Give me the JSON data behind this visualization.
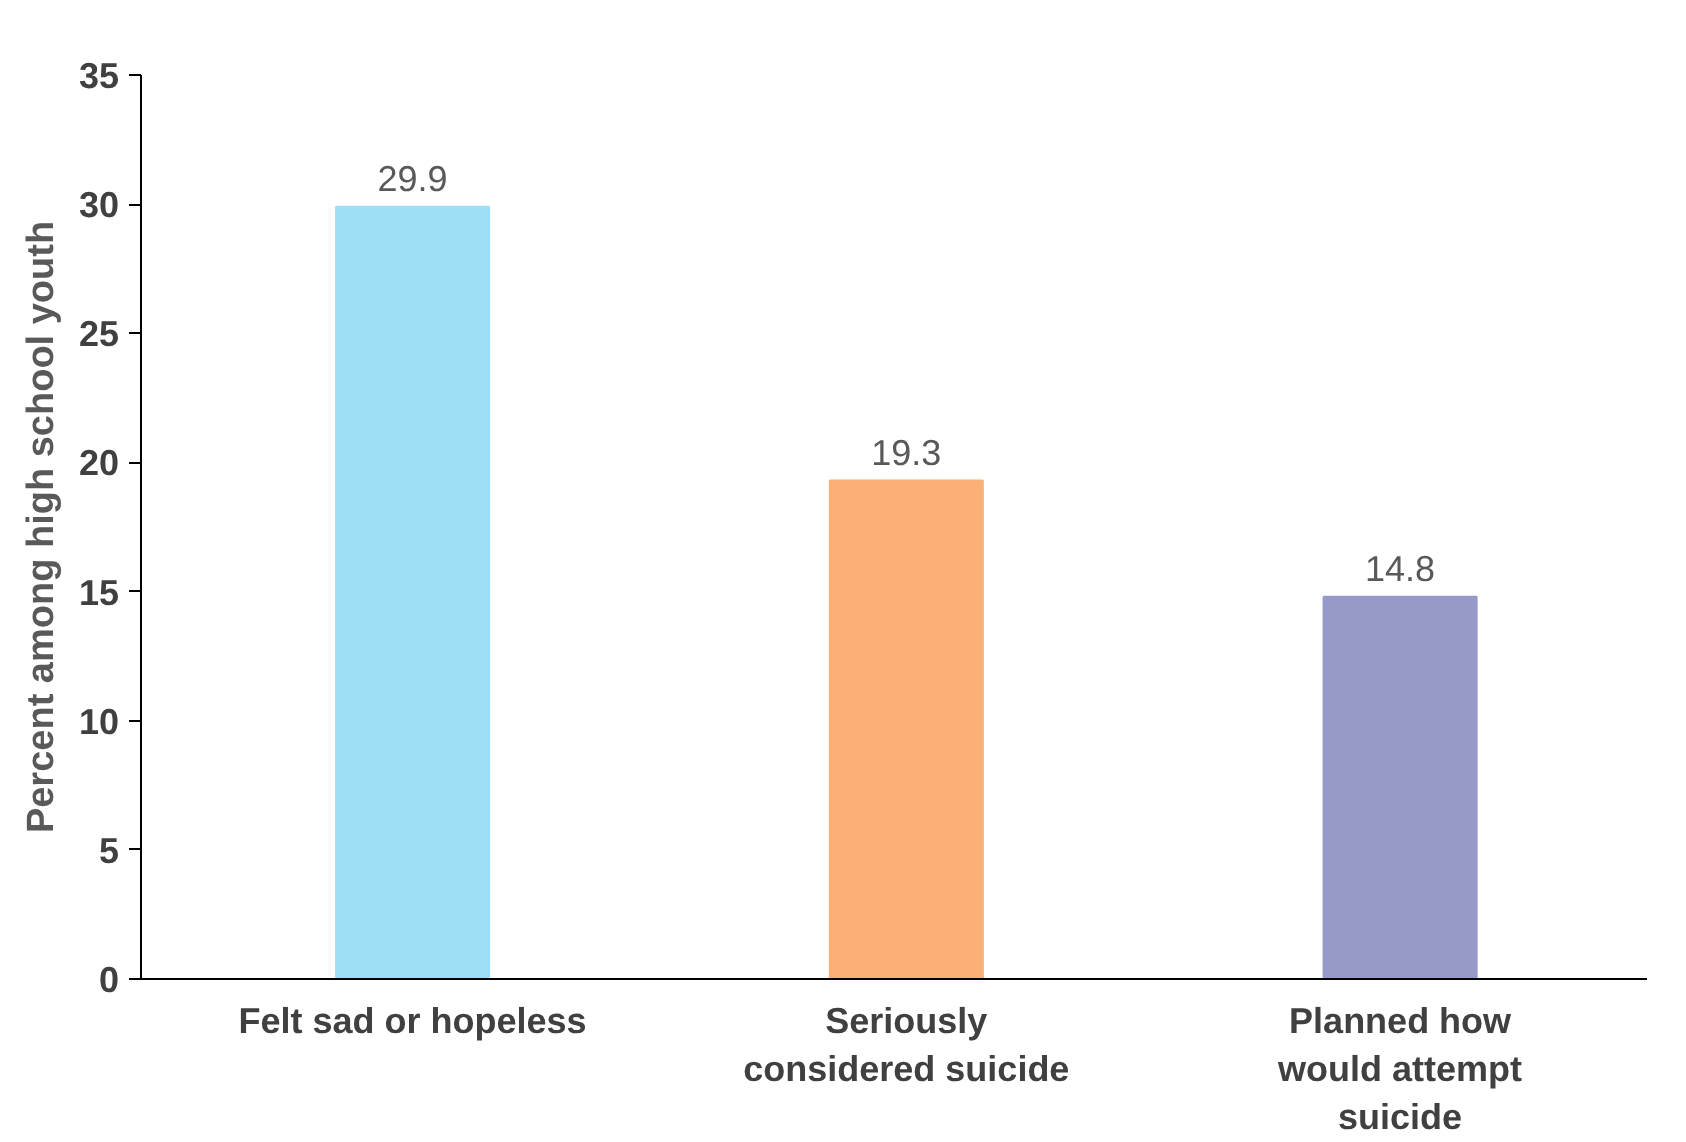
{
  "chart_data": {
    "type": "bar",
    "ylabel": "Percent among high school youth",
    "categories": [
      "Felt sad or hopeless",
      "Seriously\nconsidered suicide",
      "Planned how\nwould attempt\nsuicide"
    ],
    "values": [
      29.9,
      19.3,
      14.8
    ],
    "colors": [
      "#9edff5",
      "#fbb078",
      "#969ac9"
    ],
    "ylim": [
      0,
      35
    ],
    "yticks": [
      0,
      5,
      10,
      15,
      20,
      25,
      30,
      35
    ],
    "data_labels": true,
    "grid": false
  }
}
